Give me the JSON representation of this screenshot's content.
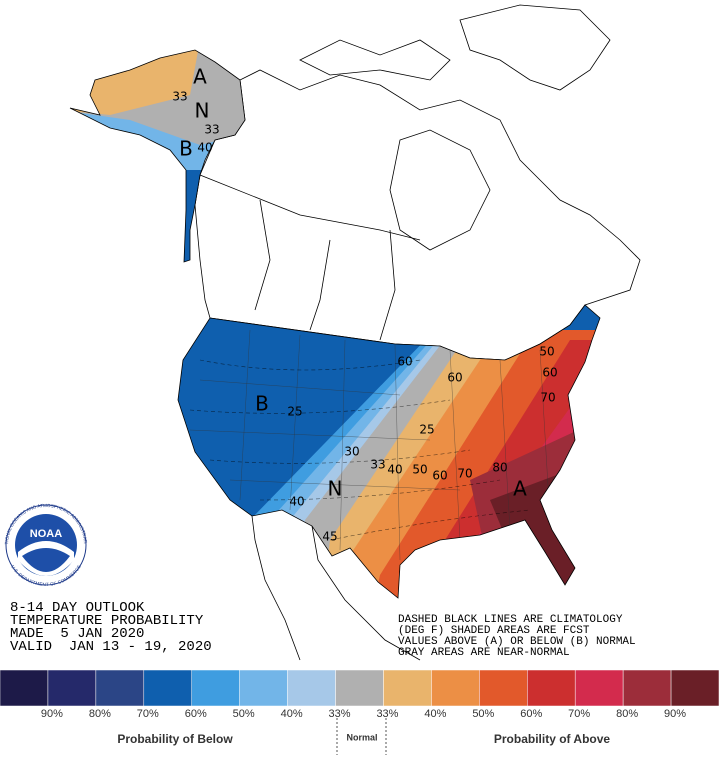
{
  "map": {
    "labels": [
      "A",
      "33",
      "N",
      "33",
      "B",
      "40",
      "B",
      "25",
      "60",
      "60",
      "25",
      "30",
      "33",
      "40",
      "50",
      "60",
      "70",
      "80",
      "N",
      "40",
      "45",
      "A",
      "50",
      "60",
      "70"
    ]
  },
  "outlook": {
    "lines": [
      "8-14 DAY OUTLOOK",
      "TEMPERATURE PROBABILITY",
      "MADE  5 JAN 2020",
      "VALID  JAN 13 - 19, 2020"
    ]
  },
  "note": {
    "lines": [
      "DASHED BLACK LINES ARE CLIMATOLOGY",
      "(DEG F) SHADED AREAS ARE FCST",
      "VALUES ABOVE (A) OR BELOW (B) NORMAL",
      "GRAY AREAS ARE NEAR-NORMAL"
    ]
  },
  "logo": {
    "name": "NOAA",
    "ring_top": "NATIONAL OCEANIC AND ATMOSPHERIC ADMINISTRATION",
    "ring_bottom": "U.S. DEPARTMENT OF COMMERCE"
  },
  "legend": {
    "colors": [
      "#1d1a48",
      "#25296a",
      "#2b4586",
      "#0f5fae",
      "#3f9de0",
      "#72b5e8",
      "#a6c8e8",
      "#b0b0b0",
      "#e9b46c",
      "#ec8f45",
      "#e2592b",
      "#cc2f2f",
      "#d32b4d",
      "#9c2d3a",
      "#6a1f27"
    ],
    "labels": [
      "90%",
      "80%",
      "70%",
      "60%",
      "50%",
      "40%",
      "33%",
      "33%",
      "40%",
      "50%",
      "60%",
      "70%",
      "80%",
      "90%"
    ],
    "below_title": "Probability of Below",
    "normal_title": "Normal",
    "above_title": "Probability of Above"
  }
}
